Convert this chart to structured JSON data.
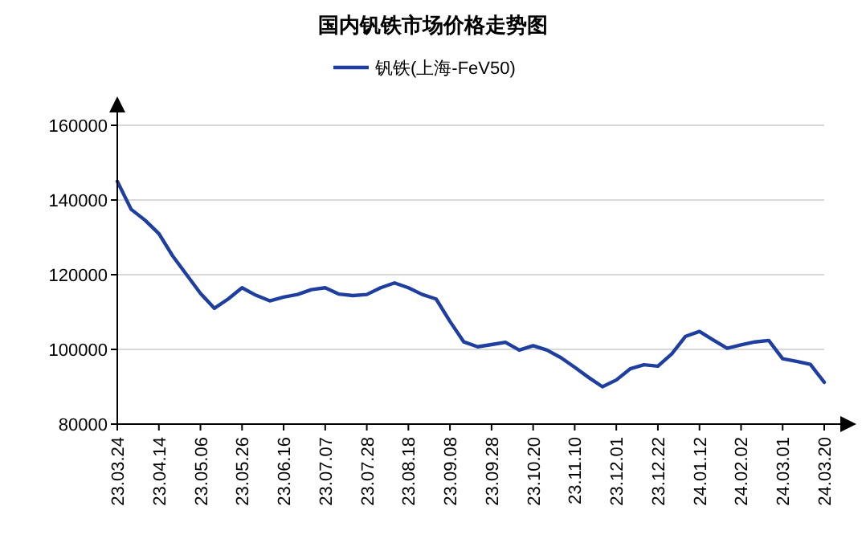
{
  "chart_data": {
    "type": "line",
    "title": "国内钒铁市场价格走势图",
    "categories": [
      "23.03.24",
      null,
      null,
      "23.04.14",
      null,
      null,
      "23.05.06",
      null,
      null,
      "23.05.26",
      null,
      null,
      "23.06.16",
      null,
      null,
      "23.07.07",
      null,
      null,
      "23.07.28",
      null,
      null,
      "23.08.18",
      null,
      null,
      "23.09.08",
      null,
      null,
      "23.09.28",
      null,
      null,
      "23.10.20",
      null,
      null,
      "23.11.10",
      null,
      null,
      "23.12.01",
      null,
      null,
      "23.12.22",
      null,
      null,
      "24.01.12",
      null,
      null,
      "24.02.02",
      null,
      null,
      "24.03.01",
      null,
      null,
      "24.03.20"
    ],
    "series": [
      {
        "name": "钒铁(上海-FeV50)",
        "color": "#1f3fa0",
        "values": [
          145000,
          137500,
          134600,
          131000,
          125000,
          120000,
          115000,
          111000,
          113500,
          116500,
          114500,
          113000,
          114000,
          114700,
          116000,
          116500,
          114800,
          114400,
          114700,
          116500,
          117800,
          116500,
          114700,
          113500,
          107500,
          102000,
          100700,
          101300,
          101900,
          99800,
          101000,
          99800,
          97800,
          95200,
          92500,
          90000,
          91800,
          94800,
          95900,
          95500,
          98800,
          103500,
          104800,
          102500,
          100300,
          101200,
          102000,
          102400,
          97500,
          96800,
          96000,
          91200
        ]
      }
    ],
    "ylim": [
      80000,
      160000
    ],
    "yticks": [
      80000,
      100000,
      120000,
      140000,
      160000
    ],
    "grid": "y",
    "legend": "top",
    "line_style": "solid"
  }
}
